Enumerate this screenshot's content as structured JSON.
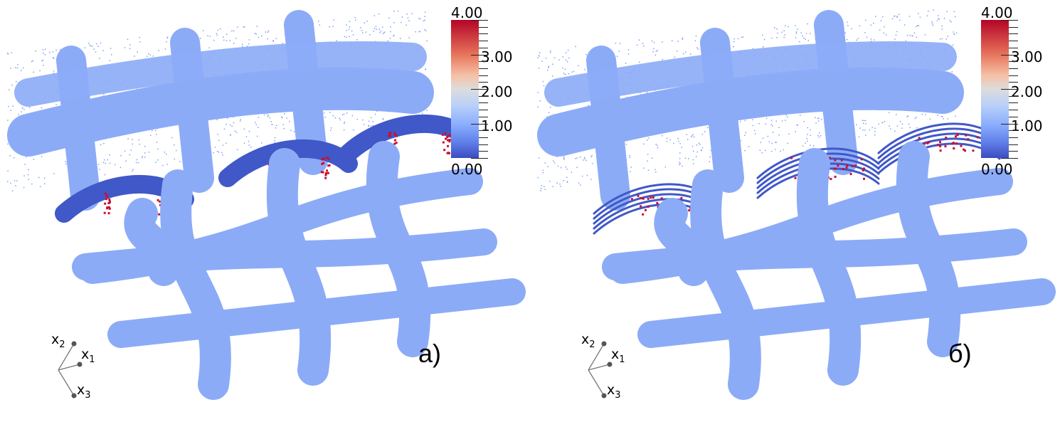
{
  "panels": [
    {
      "label": "а)",
      "variant": "a"
    },
    {
      "label": "б)",
      "variant": "b"
    }
  ],
  "colorbar": {
    "min": 0,
    "max": 4,
    "ticks": [
      "4.00",
      "3.00",
      "2.00",
      "1.00",
      "0.00"
    ],
    "colormap": "coolwarm",
    "colors": {
      "low": "#3b4cc0",
      "mid": "#dddcdc",
      "high": "#b40426"
    }
  },
  "axes": {
    "x1": "x",
    "x1_sub": "1",
    "x2": "x",
    "x2_sub": "2",
    "x3": "x",
    "x3_sub": "3"
  },
  "colors": {
    "fiber": "#8cabf7",
    "compressed": "#4058c8",
    "peak": "#c8102e"
  }
}
